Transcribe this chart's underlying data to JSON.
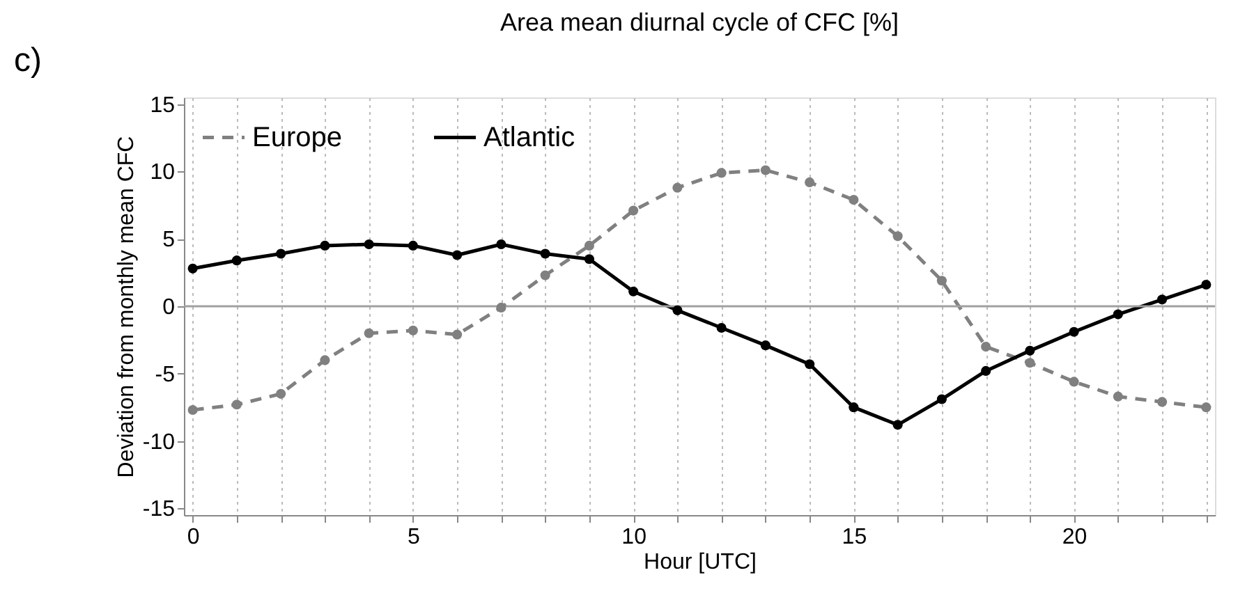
{
  "chart_data": {
    "type": "line",
    "title": "Area mean diurnal cycle of CFC [%]",
    "xlabel": "Hour [UTC]",
    "ylabel": "Deviation from monthly mean CFC",
    "annotations": [
      "c)"
    ],
    "x": [
      0,
      1,
      2,
      3,
      4,
      5,
      6,
      7,
      8,
      9,
      10,
      11,
      12,
      13,
      14,
      15,
      16,
      17,
      18,
      19,
      20,
      21,
      22,
      23
    ],
    "series": [
      {
        "name": "Europe",
        "color": "#808080",
        "line_style": "dashed",
        "values": [
          -7.7,
          -7.3,
          -6.5,
          -4.0,
          -2.0,
          -1.8,
          -2.1,
          -0.1,
          2.3,
          4.5,
          7.1,
          8.8,
          9.9,
          10.1,
          9.2,
          7.9,
          5.2,
          1.9,
          -3.0,
          -4.2,
          -5.6,
          -6.7,
          -7.1,
          -7.5
        ]
      },
      {
        "name": "Atlantic",
        "color": "#000000",
        "line_style": "solid",
        "values": [
          2.8,
          3.4,
          3.9,
          4.5,
          4.6,
          4.5,
          3.8,
          4.6,
          3.9,
          3.5,
          1.1,
          -0.3,
          -1.6,
          -2.9,
          -4.3,
          -7.5,
          -8.8,
          -6.9,
          -4.8,
          -3.3,
          -1.9,
          -0.6,
          0.5,
          1.6
        ]
      }
    ],
    "marker": "circle",
    "xlim": [
      -0.2,
      23.2
    ],
    "xticks": [
      0,
      {
        "value": 1,
        "label": null
      },
      {
        "value": 2,
        "label": null
      },
      {
        "value": 3,
        "label": null
      },
      {
        "value": 4,
        "label": null
      },
      5,
      {
        "value": 6,
        "label": null
      },
      {
        "value": 7,
        "label": null
      },
      {
        "value": 8,
        "label": null
      },
      {
        "value": 9,
        "label": null
      },
      10,
      {
        "value": 11,
        "label": null
      },
      {
        "value": 12,
        "label": null
      },
      {
        "value": 13,
        "label": null
      },
      {
        "value": 14,
        "label": null
      },
      15,
      {
        "value": 16,
        "label": null
      },
      {
        "value": 17,
        "label": null
      },
      {
        "value": 18,
        "label": null
      },
      {
        "value": 19,
        "label": null
      },
      20,
      {
        "value": 21,
        "label": null
      },
      {
        "value": 22,
        "label": null
      },
      {
        "value": 23,
        "label": null
      }
    ],
    "ylim": [
      -15.5,
      15.5
    ],
    "yticks": [
      -15,
      -10,
      -5,
      0,
      5,
      10,
      15
    ],
    "grid": "x",
    "legend": "top left",
    "ref_lines": [
      {
        "axis": "y",
        "value": 0,
        "color": "#a0a0a0"
      }
    ]
  }
}
